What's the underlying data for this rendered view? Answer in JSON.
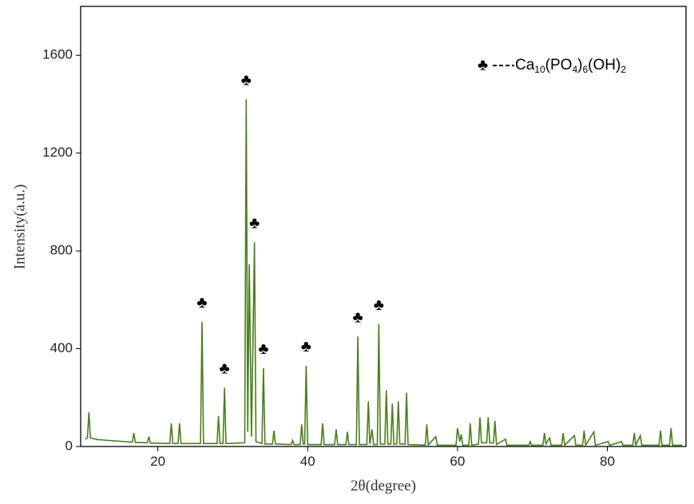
{
  "chart_data": {
    "type": "line",
    "x_label": "2θ(degree)",
    "y_label": "Intensity(a.u.)",
    "xlim": [
      9.7,
      90.5
    ],
    "ylim": [
      0,
      1800
    ],
    "xticks": [
      20,
      40,
      60,
      80
    ],
    "yticks": [
      0,
      400,
      800,
      1200,
      1600
    ],
    "marker_symbol": "♣",
    "peak_markers": [
      25.9,
      28.9,
      31.8,
      32.9,
      34.1,
      39.8,
      46.7,
      49.5
    ],
    "series": [
      {
        "name": "Ca10(PO4)6(OH)2",
        "color": "#4a7d1e",
        "x": [
          10.3,
          10.6,
          10.8,
          11.0,
          12,
          16.6,
          16.8,
          17.0,
          18.6,
          18.8,
          19.0,
          21.6,
          21.8,
          22.0,
          22.7,
          22.9,
          23.1,
          25.7,
          25.9,
          26.1,
          27.9,
          28.1,
          28.3,
          28.7,
          28.9,
          29.1,
          31.6,
          31.8,
          32.0,
          32.2,
          32.5,
          32.9,
          33.1,
          33.9,
          34.1,
          34.3,
          35.3,
          35.5,
          35.7,
          37.8,
          38.0,
          38.2,
          39.0,
          39.2,
          39.4,
          39.6,
          39.8,
          40.0,
          41.8,
          42.0,
          42.2,
          43.6,
          43.8,
          44.0,
          45.1,
          45.3,
          45.5,
          46.5,
          46.7,
          46.9,
          47.9,
          48.1,
          48.3,
          48.6,
          48.8,
          49.3,
          49.5,
          49.7,
          50.3,
          50.5,
          50.7,
          51.1,
          51.3,
          51.5,
          51.9,
          52.1,
          52.3,
          53.0,
          53.2,
          53.4,
          55.7,
          55.9,
          56.1,
          57.1,
          57.3,
          59.8,
          60.0,
          60.3,
          60.5,
          60.7,
          61.5,
          61.7,
          61.9,
          62.8,
          63.0,
          63.2,
          63.9,
          64.1,
          64.3,
          64.8,
          65.0,
          65.2,
          66.4,
          66.6,
          69.5,
          69.7,
          69.9,
          71.4,
          71.6,
          71.8,
          72.3,
          72.5,
          73.9,
          74.1,
          74.3,
          75.6,
          75.8,
          76.7,
          76.9,
          77.1,
          78.2,
          78.4,
          80.1,
          80.3,
          81.9,
          82.1,
          83.4,
          83.6,
          83.8,
          84.4,
          84.6,
          86.9,
          87.1,
          87.3,
          88.3,
          88.5,
          88.7,
          90.0
        ],
        "values": [
          30,
          35,
          140,
          35,
          28,
          18,
          55,
          17,
          15,
          40,
          14,
          12,
          95,
          12,
          12,
          95,
          12,
          12,
          510,
          12,
          12,
          125,
          12,
          12,
          240,
          12,
          15,
          1420,
          60,
          745,
          40,
          835,
          20,
          12,
          320,
          10,
          10,
          65,
          10,
          8,
          25,
          8,
          8,
          90,
          10,
          10,
          330,
          8,
          8,
          95,
          8,
          8,
          70,
          8,
          8,
          60,
          8,
          8,
          450,
          8,
          8,
          185,
          10,
          70,
          8,
          8,
          500,
          10,
          10,
          230,
          10,
          10,
          175,
          10,
          10,
          185,
          10,
          10,
          220,
          8,
          6,
          90,
          6,
          40,
          5,
          5,
          75,
          20,
          50,
          5,
          5,
          95,
          5,
          10,
          120,
          15,
          15,
          120,
          15,
          15,
          105,
          8,
          30,
          5,
          5,
          20,
          5,
          5,
          55,
          10,
          35,
          5,
          5,
          55,
          5,
          45,
          5,
          5,
          65,
          5,
          60,
          5,
          20,
          5,
          20,
          5,
          5,
          55,
          5,
          45,
          5,
          5,
          65,
          5,
          5,
          75,
          5,
          5
        ]
      }
    ]
  }
}
